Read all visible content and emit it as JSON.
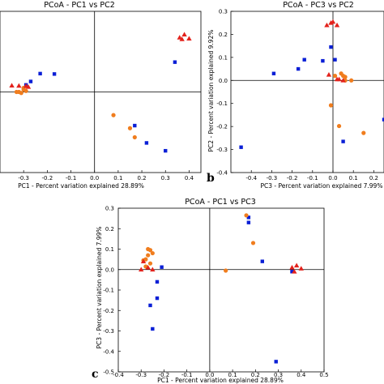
{
  "colors": {
    "blue": "#0a1fd6",
    "orange": "#f07d1e",
    "red": "#e3221c"
  },
  "chart_data": [
    {
      "type": "scatter",
      "title": "PCoA - PC1 vs PC2",
      "xlabel": "PC1 - Percent variation explained 28.89%",
      "ylabel": "",
      "xlim": [
        -0.4,
        0.45
      ],
      "ylim": [
        -0.4,
        0.4
      ],
      "xticks": [
        -0.3,
        -0.2,
        -0.1,
        0.0,
        0.1,
        0.2,
        0.3,
        0.4
      ],
      "xtick_labels": [
        "-0.3",
        "-0.2",
        "-0.1",
        "0.0",
        "0.1",
        "0.2",
        "0.3",
        "0.4"
      ],
      "yticks": [],
      "ytick_labels": [],
      "grid": false,
      "letter": "",
      "series": [
        {
          "marker": "square",
          "color": "blue",
          "points": [
            [
              -0.17,
              0.089
            ],
            [
              -0.23,
              0.091
            ],
            [
              -0.27,
              0.052
            ],
            [
              -0.29,
              0.035
            ],
            [
              0.34,
              0.148
            ],
            [
              0.17,
              -0.167
            ],
            [
              0.22,
              -0.253
            ],
            [
              0.3,
              -0.292
            ]
          ]
        },
        {
          "marker": "circle",
          "color": "orange",
          "points": [
            [
              -0.3,
              0.012
            ],
            [
              -0.31,
              -0.005
            ],
            [
              -0.32,
              0.0
            ],
            [
              -0.29,
              0.005
            ],
            [
              -0.33,
              0.0
            ],
            [
              -0.3,
              0.02
            ],
            [
              0.08,
              -0.115
            ],
            [
              0.15,
              -0.18
            ],
            [
              0.17,
              -0.225
            ]
          ]
        },
        {
          "marker": "triangle",
          "color": "red",
          "points": [
            [
              -0.35,
              0.032
            ],
            [
              -0.32,
              0.031
            ],
            [
              -0.29,
              0.03
            ],
            [
              -0.28,
              0.025
            ],
            [
              0.36,
              0.27
            ],
            [
              0.38,
              0.285
            ],
            [
              0.4,
              0.265
            ],
            [
              0.37,
              0.262
            ]
          ]
        }
      ]
    },
    {
      "type": "scatter",
      "title": "PCoA - PC3 vs PC2",
      "xlabel": "PC3 - Percent variation explained 7.99%",
      "ylabel": "PC2 - Percent variation explained 9.92%",
      "xlim": [
        -0.5,
        0.25
      ],
      "ylim": [
        -0.4,
        0.3
      ],
      "xticks": [
        -0.4,
        -0.3,
        -0.2,
        -0.1,
        0.0,
        0.1,
        0.2
      ],
      "xtick_labels": [
        "-0.4",
        "-0.3",
        "-0.2",
        "-0.1",
        "0.0",
        "0.1",
        "0.2"
      ],
      "yticks": [
        -0.4,
        -0.3,
        -0.2,
        -0.1,
        0.0,
        0.1,
        0.2,
        0.3
      ],
      "ytick_labels": [
        "-0.4",
        "-0.3",
        "-0.2",
        "-0.1",
        "0.0",
        "0.1",
        "0.2",
        "0.3"
      ],
      "grid": false,
      "letter": "b",
      "series": [
        {
          "marker": "square",
          "color": "blue",
          "points": [
            [
              -0.45,
              -0.29
            ],
            [
              -0.29,
              0.03
            ],
            [
              -0.17,
              0.05
            ],
            [
              -0.14,
              0.09
            ],
            [
              -0.05,
              0.085
            ],
            [
              -0.01,
              0.145
            ],
            [
              0.01,
              0.09
            ],
            [
              0.05,
              -0.265
            ],
            [
              0.25,
              -0.17
            ]
          ]
        },
        {
          "marker": "circle",
          "color": "orange",
          "points": [
            [
              -0.01,
              -0.108
            ],
            [
              0.01,
              0.02
            ],
            [
              0.04,
              0.03
            ],
            [
              0.06,
              0.0
            ],
            [
              0.06,
              0.015
            ],
            [
              0.05,
              0.02
            ],
            [
              0.09,
              0.0
            ],
            [
              0.15,
              -0.228
            ],
            [
              0.03,
              -0.198
            ]
          ]
        },
        {
          "marker": "triangle",
          "color": "red",
          "points": [
            [
              -0.03,
              0.24
            ],
            [
              -0.01,
              0.25
            ],
            [
              0.0,
              0.255
            ],
            [
              0.02,
              0.24
            ],
            [
              -0.02,
              0.025
            ],
            [
              0.02,
              0.005
            ],
            [
              0.03,
              0.005
            ],
            [
              0.05,
              0.0
            ]
          ]
        }
      ]
    },
    {
      "type": "scatter",
      "title": "PCoA - PC1 vs PC3",
      "xlabel": "PC1 - Percent variation explained 28.89%",
      "ylabel": "PC3 - Percent variation explained 7.99%",
      "xlim": [
        -0.4,
        0.5
      ],
      "ylim": [
        -0.5,
        0.3
      ],
      "xticks": [
        -0.4,
        -0.3,
        -0.2,
        -0.1,
        0.0,
        0.1,
        0.2,
        0.3,
        0.4,
        0.5
      ],
      "xtick_labels": [
        "-0.4",
        "-0.3",
        "-0.2",
        "-0.1",
        "0.0",
        "0.1",
        "0.2",
        "0.3",
        "0.4",
        "0.5"
      ],
      "yticks": [
        -0.5,
        -0.4,
        -0.3,
        -0.2,
        -0.1,
        0.0,
        0.1,
        0.2,
        0.3
      ],
      "ytick_labels": [
        "-0.5",
        "-0.4",
        "-0.3",
        "-0.2",
        "-0.1",
        "0.0",
        "0.1",
        "0.2",
        "0.3"
      ],
      "grid": false,
      "letter": "c",
      "series": [
        {
          "marker": "square",
          "color": "blue",
          "points": [
            [
              -0.21,
              0.012
            ],
            [
              -0.23,
              -0.06
            ],
            [
              -0.23,
              -0.14
            ],
            [
              -0.26,
              -0.175
            ],
            [
              -0.25,
              -0.29
            ],
            [
              0.17,
              0.255
            ],
            [
              0.17,
              0.23
            ],
            [
              0.23,
              0.04
            ],
            [
              0.36,
              -0.01
            ],
            [
              0.29,
              -0.45
            ]
          ]
        },
        {
          "marker": "circle",
          "color": "orange",
          "points": [
            [
              -0.27,
              0.1
            ],
            [
              -0.26,
              0.095
            ],
            [
              -0.27,
              0.07
            ],
            [
              -0.28,
              0.05
            ],
            [
              -0.29,
              0.045
            ],
            [
              -0.26,
              0.03
            ],
            [
              -0.25,
              0.08
            ],
            [
              -0.28,
              0.015
            ],
            [
              0.16,
              0.265
            ],
            [
              0.19,
              0.13
            ],
            [
              0.07,
              -0.005
            ]
          ]
        },
        {
          "marker": "triangle",
          "color": "red",
          "points": [
            [
              -0.3,
              0.0
            ],
            [
              -0.27,
              0.01
            ],
            [
              -0.25,
              0.0
            ],
            [
              -0.29,
              0.04
            ],
            [
              0.36,
              0.01
            ],
            [
              0.38,
              0.02
            ],
            [
              0.4,
              0.005
            ],
            [
              0.37,
              -0.01
            ]
          ]
        }
      ]
    }
  ]
}
